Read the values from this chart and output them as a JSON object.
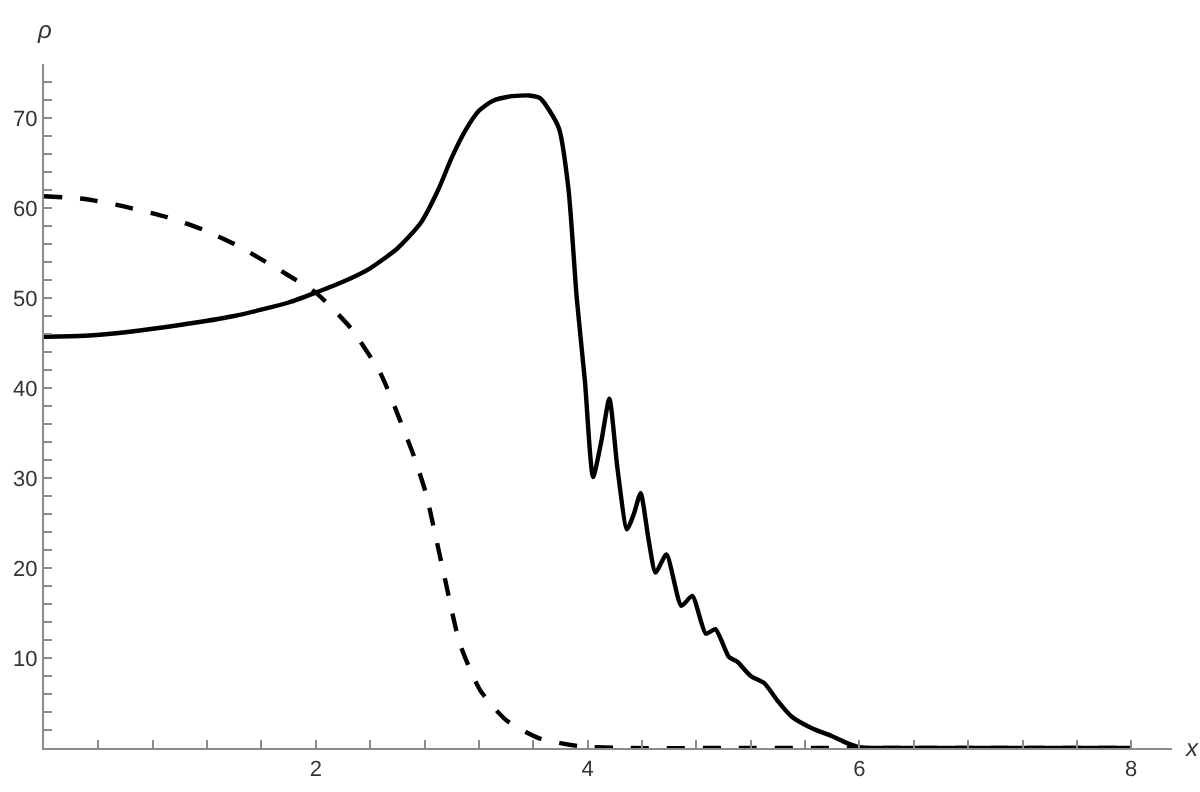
{
  "chart_data": {
    "type": "line",
    "xlabel": "x",
    "ylabel": "ρ",
    "xlim": [
      0,
      8.3
    ],
    "ylim": [
      0,
      76
    ],
    "xticks": [
      {
        "value": 0.4,
        "label": null
      },
      {
        "value": 0.8,
        "label": null
      },
      {
        "value": 1.2,
        "label": null
      },
      {
        "value": 1.6,
        "label": null
      },
      2,
      {
        "value": 2.4,
        "label": null
      },
      {
        "value": 2.8,
        "label": null
      },
      {
        "value": 3.2,
        "label": null
      },
      {
        "value": 3.6,
        "label": null
      },
      4,
      {
        "value": 4.4,
        "label": null
      },
      {
        "value": 4.8,
        "label": null
      },
      {
        "value": 5.2,
        "label": null
      },
      {
        "value": 5.6,
        "label": null
      },
      6,
      {
        "value": 6.4,
        "label": null
      },
      {
        "value": 6.8,
        "label": null
      },
      {
        "value": 7.2,
        "label": null
      },
      {
        "value": 7.6,
        "label": null
      },
      8
    ],
    "yticks": [
      {
        "value": 2,
        "label": null
      },
      {
        "value": 4,
        "label": null
      },
      {
        "value": 6,
        "label": null
      },
      {
        "value": 8,
        "label": null
      },
      10,
      {
        "value": 12,
        "label": null
      },
      {
        "value": 14,
        "label": null
      },
      {
        "value": 16,
        "label": null
      },
      {
        "value": 18,
        "label": null
      },
      20,
      {
        "value": 22,
        "label": null
      },
      {
        "value": 24,
        "label": null
      },
      {
        "value": 26,
        "label": null
      },
      {
        "value": 28,
        "label": null
      },
      30,
      {
        "value": 32,
        "label": null
      },
      {
        "value": 34,
        "label": null
      },
      {
        "value": 36,
        "label": null
      },
      {
        "value": 38,
        "label": null
      },
      40,
      {
        "value": 42,
        "label": null
      },
      {
        "value": 44,
        "label": null
      },
      {
        "value": 46,
        "label": null
      },
      {
        "value": 48,
        "label": null
      },
      50,
      {
        "value": 52,
        "label": null
      },
      {
        "value": 54,
        "label": null
      },
      {
        "value": 56,
        "label": null
      },
      {
        "value": 58,
        "label": null
      },
      60,
      {
        "value": 62,
        "label": null
      },
      {
        "value": 64,
        "label": null
      },
      {
        "value": 66,
        "label": null
      },
      {
        "value": 68,
        "label": null
      },
      70,
      {
        "value": 72,
        "label": null
      },
      {
        "value": 74,
        "label": null
      }
    ],
    "grid": false,
    "marker": "none",
    "series": [
      {
        "color": "#000000",
        "line_style": "dashed",
        "x": [
          0,
          0.3,
          0.58,
          0.9,
          1.17,
          1.4,
          1.6,
          1.8,
          2,
          2.26,
          2.48,
          2.62,
          2.72,
          2.81,
          2.94,
          3.06,
          3.21,
          3.4,
          3.64,
          3.94,
          4.3,
          5,
          6,
          7,
          8
        ],
        "values": [
          61.3,
          61,
          60.2,
          59,
          57.6,
          56,
          54.3,
          52.5,
          50.6,
          46.6,
          41.5,
          36.4,
          32.5,
          28.3,
          19.5,
          11.6,
          6.4,
          3.1,
          1.1,
          0.2,
          0,
          0,
          0,
          0,
          0
        ]
      },
      {
        "color": "#000000",
        "line_style": "solid",
        "x": [
          0,
          0.3,
          0.6,
          1,
          1.4,
          1.8,
          2,
          2.2,
          2.4,
          2.6,
          2.77,
          2.9,
          3,
          3.1,
          3.2,
          3.3,
          3.43,
          3.57,
          3.65,
          3.72,
          3.79,
          3.86,
          3.92,
          3.98,
          4.04,
          4.1,
          4.16,
          4.22,
          4.29,
          4.34,
          4.39,
          4.45,
          4.5,
          4.58,
          4.69,
          4.77,
          4.87,
          4.94,
          5.04,
          5.1,
          5.2,
          5.3,
          5.4,
          5.5,
          5.65,
          5.8,
          5.9,
          6,
          6.5,
          7,
          8
        ],
        "values": [
          45.7,
          45.8,
          46.2,
          47,
          48,
          49.5,
          50.6,
          51.8,
          53.3,
          55.5,
          58.3,
          62,
          65.6,
          68.6,
          70.8,
          71.9,
          72.4,
          72.5,
          72.2,
          70.8,
          68.8,
          62,
          50,
          40.8,
          30.1,
          34,
          38.8,
          31,
          24.3,
          26,
          28.3,
          23,
          19.5,
          21.5,
          15.8,
          16.9,
          12.7,
          13.2,
          10.1,
          9.6,
          8,
          7.2,
          5.2,
          3.5,
          2.2,
          1.3,
          0.6,
          0.1,
          0,
          0,
          0
        ]
      }
    ]
  }
}
